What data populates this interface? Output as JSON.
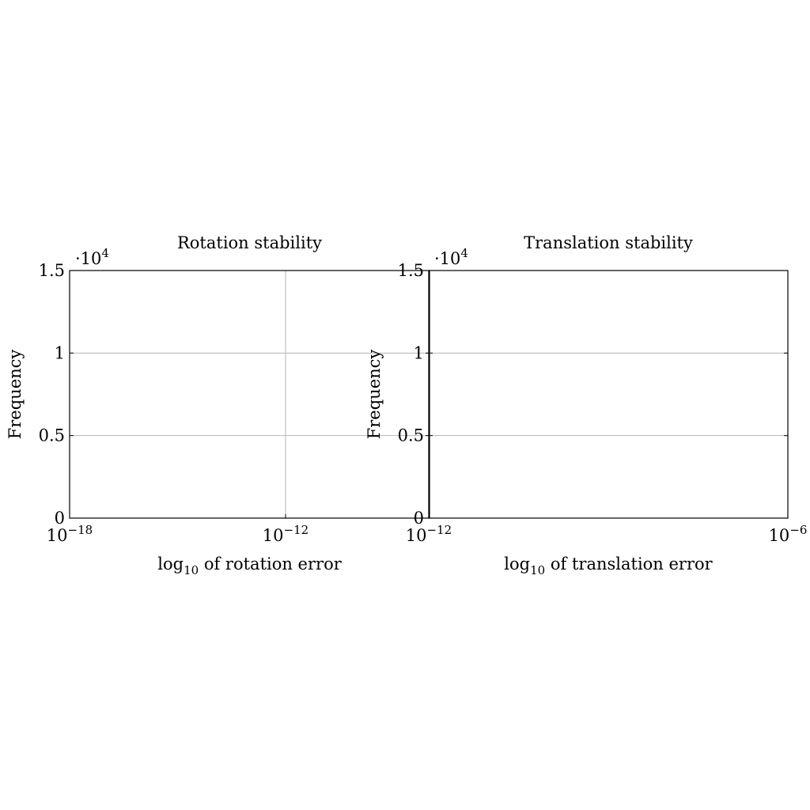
{
  "chart_data": [
    {
      "type": "bar",
      "title": "Rotation stability",
      "xlabel": {
        "prefix": "log",
        "sub": "10",
        "suffix": " of rotation error"
      },
      "ylabel": "Frequency",
      "xscale": "log",
      "xlim": [
        1e-18,
        1e-08
      ],
      "x_ticks": [
        {
          "value": 1e-18,
          "base": "10",
          "exp": "−18"
        },
        {
          "value": 1e-12,
          "base": "10",
          "exp": "−12"
        }
      ],
      "ylim": [
        0,
        15000
      ],
      "y_multiplier": {
        "base": "·10",
        "exp": "4"
      },
      "y_ticks": [
        {
          "value": 0,
          "label": "0"
        },
        {
          "value": 5000,
          "label": "0.5"
        },
        {
          "value": 10000,
          "label": "1"
        },
        {
          "value": 15000,
          "label": "1.5"
        }
      ],
      "grid": true,
      "series": [
        {
          "values": []
        }
      ]
    },
    {
      "type": "bar",
      "title": "Translation stability",
      "xlabel": {
        "prefix": "log",
        "sub": "10",
        "suffix": " of translation error"
      },
      "ylabel": "Frequency",
      "xscale": "log",
      "xlim": [
        1e-12,
        1e-06
      ],
      "x_ticks": [
        {
          "value": 1e-12,
          "base": "10",
          "exp": "−12"
        },
        {
          "value": 1e-06,
          "base": "10",
          "exp": "−6"
        }
      ],
      "ylim": [
        0,
        15000
      ],
      "y_multiplier": {
        "base": "·10",
        "exp": "4"
      },
      "y_ticks": [
        {
          "value": 0,
          "label": "0"
        },
        {
          "value": 5000,
          "label": "0.5"
        },
        {
          "value": 10000,
          "label": "1"
        },
        {
          "value": 15000,
          "label": "1.5"
        }
      ],
      "grid": true,
      "series": [
        {
          "values": []
        }
      ]
    }
  ]
}
